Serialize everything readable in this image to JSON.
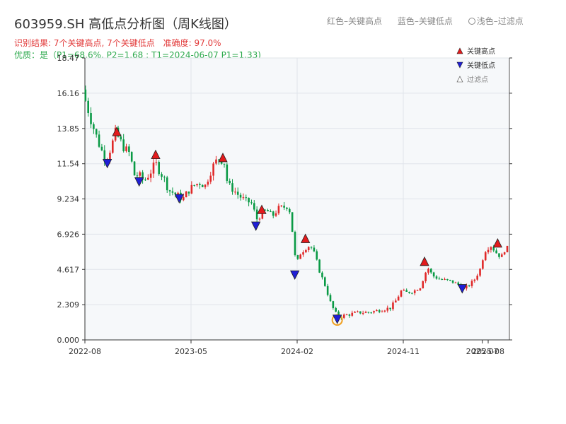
{
  "header": {
    "title": "603959.SH 高低点分析图（周K线图）",
    "legend_high": "红色–关键高点",
    "legend_low": "蓝色–关键低点",
    "legend_filtered": "浅色–过滤点",
    "result_text": "识别结果: 7个关键高点, 7个关键低点",
    "accuracy_text": "准确度: 97.0%",
    "quality_text": "优质：是（P1=68.6%, P2=1.68 ; T1=2024-06-07 P1=1.33)"
  },
  "colors": {
    "up": "#e02828",
    "down": "#0a9a45",
    "high_marker": "#e31a1c",
    "low_marker": "#1f1fd6",
    "filtered_ring": "#f0a020",
    "plot_bg": "#f6f8fa",
    "grid": "#e0e4ea"
  },
  "chart_data": {
    "type": "candlestick",
    "x_axis": {
      "range_months": [
        [
          "2022-08",
          0
        ],
        [
          "2025-08",
          36
        ]
      ],
      "tick_labels": [
        "2022-08",
        "2023-05",
        "2024-02",
        "2024-11",
        "2025-07",
        "2025-08"
      ],
      "tick_months": [
        0,
        9,
        18,
        27,
        33.7,
        34.2
      ]
    },
    "y_axis": {
      "ylim": [
        0,
        18.47
      ],
      "tick_values": [
        0,
        2.309,
        4.617,
        6.926,
        9.234,
        11.54,
        13.85,
        16.16,
        18.47
      ],
      "tick_labels": [
        "0.000",
        "2.309",
        "4.617",
        "6.926",
        "9.234",
        "11.54",
        "13.85",
        "16.16",
        "18.47"
      ]
    },
    "grid": true,
    "legend": {
      "placement": "top-right",
      "entries": [
        "关键高点",
        "关键低点",
        "过滤点"
      ]
    },
    "anchors": [
      [
        0,
        15.8
      ],
      [
        0.6,
        14.2
      ],
      [
        1.3,
        12.6
      ],
      [
        1.8,
        11.8
      ],
      [
        2.3,
        12.8
      ],
      [
        2.6,
        13.6
      ],
      [
        3.3,
        12.6
      ],
      [
        3.8,
        12.2
      ],
      [
        4.2,
        10.8
      ],
      [
        4.6,
        10.8
      ],
      [
        5.0,
        10.4
      ],
      [
        5.5,
        10.9
      ],
      [
        6.0,
        11.6
      ],
      [
        6.3,
        11.1
      ],
      [
        6.7,
        10.6
      ],
      [
        7.1,
        9.8
      ],
      [
        7.6,
        9.6
      ],
      [
        8.0,
        9.4
      ],
      [
        8.3,
        9.2
      ],
      [
        8.7,
        9.7
      ],
      [
        9.2,
        10.1
      ],
      [
        9.7,
        10.3
      ],
      [
        10.2,
        10.1
      ],
      [
        10.8,
        11.3
      ],
      [
        11.3,
        11.9
      ],
      [
        11.8,
        11.7
      ],
      [
        12.1,
        10.2
      ],
      [
        12.5,
        9.9
      ],
      [
        13.0,
        9.5
      ],
      [
        13.6,
        9.1
      ],
      [
        14.1,
        9.0
      ],
      [
        14.6,
        7.9
      ],
      [
        15.0,
        8.3
      ],
      [
        15.4,
        8.5
      ],
      [
        15.9,
        8.1
      ],
      [
        16.4,
        8.6
      ],
      [
        16.9,
        8.7
      ],
      [
        17.3,
        8.8
      ],
      [
        17.7,
        6.5
      ],
      [
        17.9,
        4.8
      ],
      [
        18.2,
        5.6
      ],
      [
        18.7,
        6.0
      ],
      [
        19.1,
        6.2
      ],
      [
        19.5,
        5.6
      ],
      [
        19.9,
        4.5
      ],
      [
        20.4,
        3.5
      ],
      [
        20.8,
        2.5
      ],
      [
        21.2,
        1.8
      ],
      [
        21.6,
        1.5
      ],
      [
        22.0,
        1.6
      ],
      [
        22.6,
        1.7
      ],
      [
        23.3,
        1.8
      ],
      [
        24.0,
        1.8
      ],
      [
        24.7,
        1.9
      ],
      [
        25.3,
        2.0
      ],
      [
        25.9,
        2.1
      ],
      [
        26.4,
        2.6
      ],
      [
        26.8,
        3.2
      ],
      [
        27.3,
        3.1
      ],
      [
        27.9,
        3.2
      ],
      [
        28.5,
        3.5
      ],
      [
        28.8,
        4.3
      ],
      [
        29.1,
        4.7
      ],
      [
        29.5,
        4.2
      ],
      [
        30.0,
        4.0
      ],
      [
        30.6,
        3.9
      ],
      [
        31.2,
        3.8
      ],
      [
        31.7,
        3.6
      ],
      [
        32.1,
        3.3
      ],
      [
        32.6,
        3.6
      ],
      [
        33.0,
        3.9
      ],
      [
        33.5,
        4.6
      ],
      [
        33.9,
        5.8
      ],
      [
        34.4,
        6.2
      ],
      [
        34.9,
        5.7
      ],
      [
        35.3,
        5.4
      ],
      [
        35.6,
        5.9
      ],
      [
        36.0,
        6.1
      ]
    ],
    "key_highs": [
      {
        "month": 2.7,
        "price": 13.6
      },
      {
        "month": 6.0,
        "price": 12.1
      },
      {
        "month": 11.7,
        "price": 11.9
      },
      {
        "month": 15.0,
        "price": 8.5
      },
      {
        "month": 18.7,
        "price": 6.6
      },
      {
        "month": 28.8,
        "price": 5.1
      },
      {
        "month": 35.0,
        "price": 6.3
      }
    ],
    "key_lows": [
      {
        "month": 1.9,
        "price": 11.6
      },
      {
        "month": 4.6,
        "price": 10.4
      },
      {
        "month": 8.0,
        "price": 9.3
      },
      {
        "month": 14.5,
        "price": 7.5
      },
      {
        "month": 17.8,
        "price": 4.3
      },
      {
        "month": 21.4,
        "price": 1.4
      },
      {
        "month": 32.0,
        "price": 3.4
      }
    ],
    "filtered_points": [
      {
        "month": 21.4,
        "price": 1.3
      }
    ]
  }
}
